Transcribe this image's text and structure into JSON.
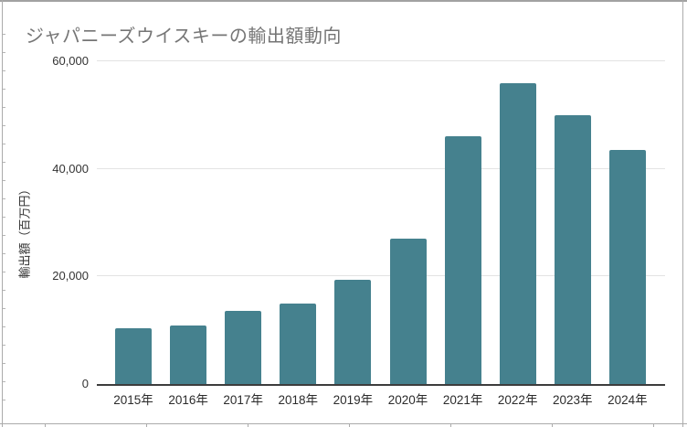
{
  "chart": {
    "title": "ジャパニーズウイスキーの輸出額動向",
    "y_axis_title": "輸出額（百万円）"
  },
  "chart_data": {
    "type": "bar",
    "title": "ジャパニーズウイスキーの輸出額動向",
    "categories": [
      "2015年",
      "2016年",
      "2017年",
      "2018年",
      "2019年",
      "2020年",
      "2021年",
      "2022年",
      "2023年",
      "2024年"
    ],
    "values": [
      10400,
      10800,
      13600,
      14900,
      19300,
      27000,
      46100,
      56000,
      49900,
      43500
    ],
    "xlabel": "",
    "ylabel": "輸出額（百万円）",
    "ylim": [
      0,
      60000
    ],
    "yticks": [
      0,
      20000,
      40000,
      60000
    ],
    "ytick_labels": [
      "0",
      "20,000",
      "40,000",
      "60,000"
    ],
    "bar_color": "#45818e",
    "grid": true,
    "legend_position": "none",
    "background_color": "#ffffff",
    "axis_color": "#3d3d3d",
    "gridline_color": "#e3e3e3",
    "title_color": "#757575"
  }
}
